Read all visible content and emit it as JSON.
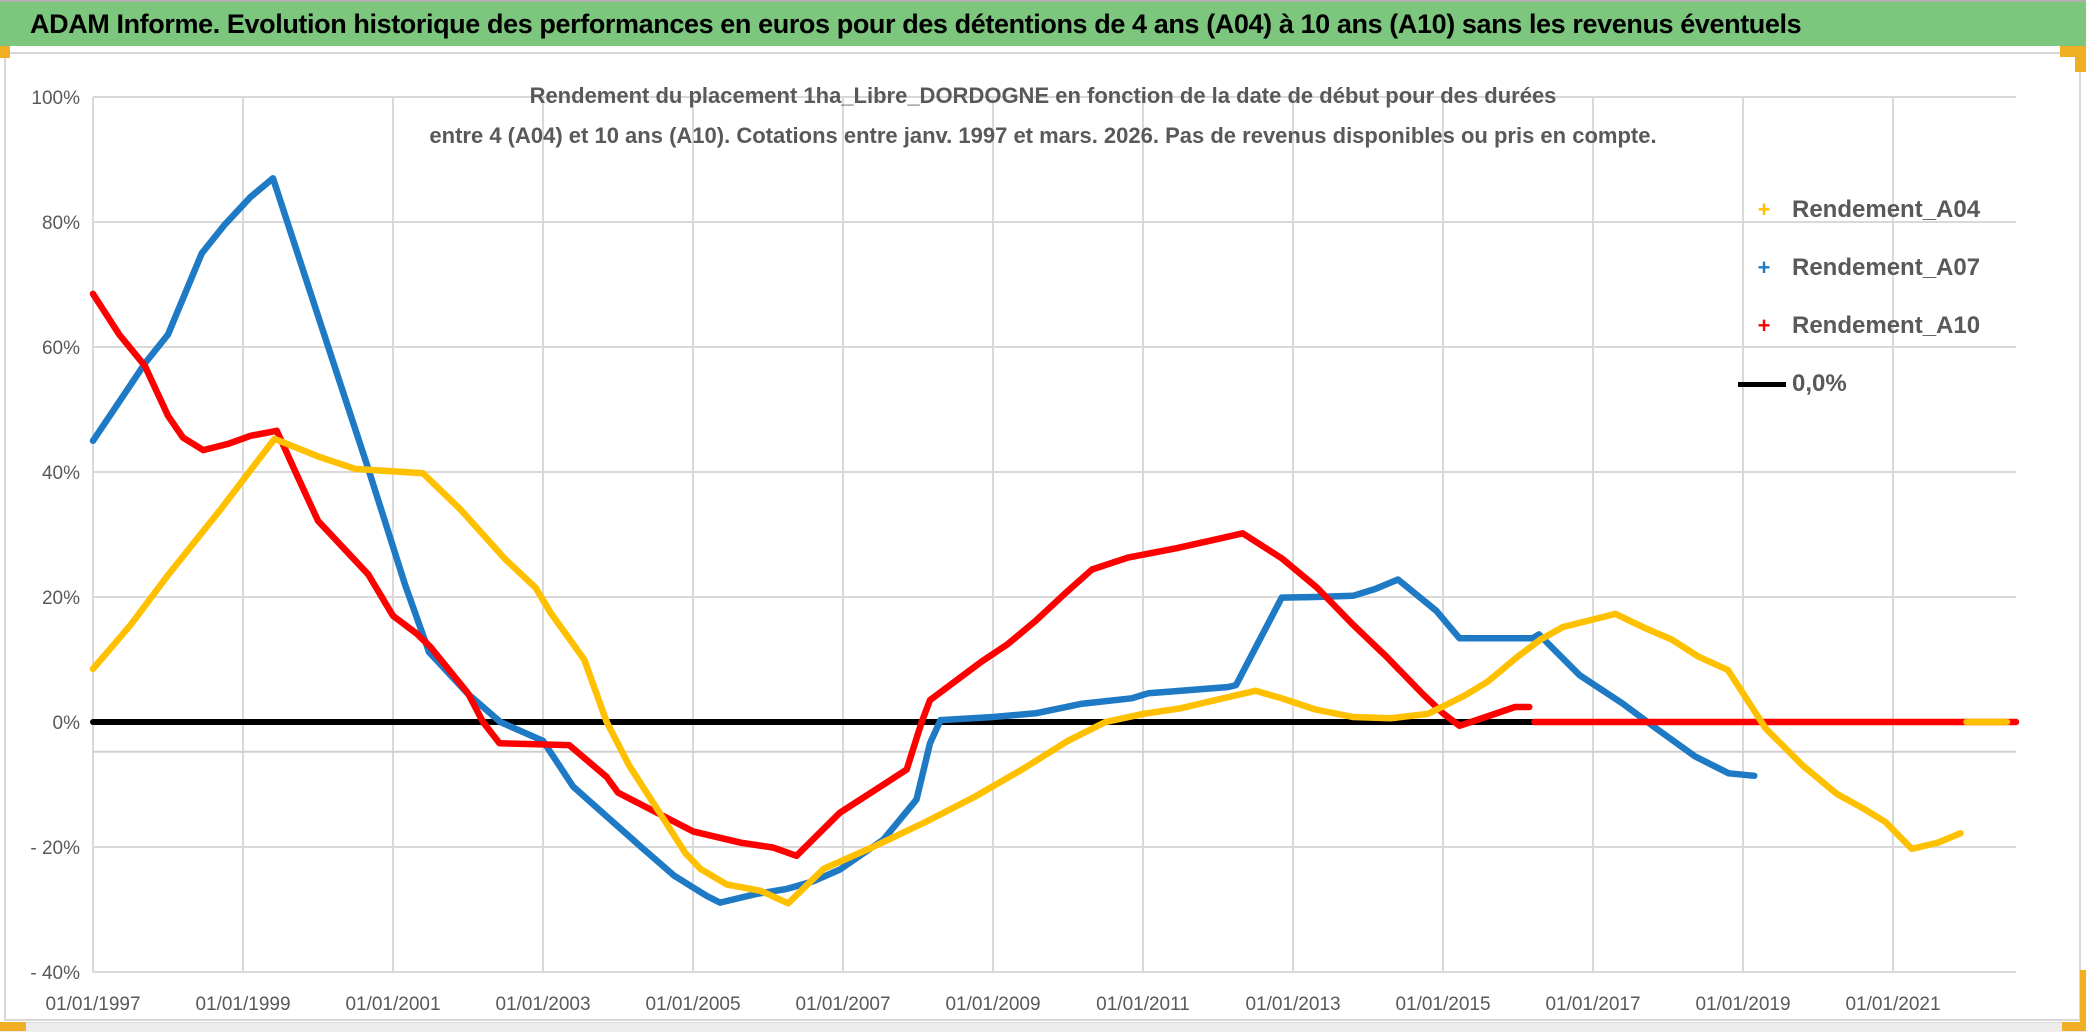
{
  "header": {
    "title": "ADAM Informe. Evolution historique des performances en euros pour des détentions de 4 ans (A04) à 10 ans (A10) sans les revenus éventuels"
  },
  "chart": {
    "title_line1": "Rendement du placement 1ha_Libre_DORDOGNE en fonction de la date de début pour des durées",
    "title_line2": "entre 4 (A04) et 10 ans (A10). Cotations entre janv. 1997 et mars. 2026. Pas de revenus disponibles ou pris en compte.",
    "legend": [
      {
        "label": "Rendement_A04",
        "marker": "+",
        "color": "#FFC000"
      },
      {
        "label": "Rendement_A07",
        "marker": "+",
        "color": "#1E7AC4"
      },
      {
        "label": "Rendement_A10",
        "marker": "+",
        "color": "#FF0000"
      },
      {
        "label": "0,0%",
        "marker": "line",
        "color": "#000000"
      }
    ]
  },
  "chart_data": {
    "type": "line",
    "title": "Rendement du placement 1ha_Libre_DORDOGNE en fonction de la date de début pour des durées entre 4 (A04) et 10 ans (A10). Cotations entre janv. 1997 et mars. 2026. Pas de revenus disponibles ou pris en compte.",
    "legend_position": "right",
    "grid": true,
    "x_axis": {
      "tick_years": [
        1997,
        1999,
        2001,
        2003,
        2005,
        2007,
        2009,
        2011,
        2013,
        2015,
        2017,
        2019,
        2021
      ],
      "tick_labels": [
        "01/01/1997",
        "01/01/1999",
        "01/01/2001",
        "01/01/2003",
        "01/01/2005",
        "01/01/2007",
        "01/01/2009",
        "01/01/2011",
        "01/01/2013",
        "01/01/2015",
        "01/01/2017",
        "01/01/2019",
        "01/01/2021"
      ],
      "range": [
        1997,
        2022.64
      ]
    },
    "y_axis": {
      "unit": "%",
      "tick_values": [
        100,
        80,
        60,
        40,
        20,
        0,
        -20,
        -40
      ],
      "tick_labels": [
        "100%",
        "80%",
        "60%",
        "40%",
        "20%",
        "0%",
        "- 20%",
        "- 40%"
      ],
      "range": [
        -40,
        100
      ],
      "extra_gridline_value": -4.75
    },
    "series": [
      {
        "name": "Rendement_A04",
        "color": "#FFC000",
        "marker": "+",
        "segments": [
          [
            [
              1997,
              8.5
            ],
            [
              1997.5,
              15.5
            ],
            [
              1998,
              23.5
            ],
            [
              1998.7,
              34
            ],
            [
              1999.42,
              45.3
            ],
            [
              2000,
              42.5
            ],
            [
              2000.5,
              40.5
            ],
            [
              2001.4,
              39.8
            ],
            [
              2001.9,
              34
            ],
            [
              2002.5,
              26
            ],
            [
              2002.9,
              21.5
            ],
            [
              2003.1,
              17.5
            ],
            [
              2003.55,
              10
            ],
            [
              2003.85,
              0
            ],
            [
              2004.15,
              -7
            ],
            [
              2004.5,
              -13.5
            ],
            [
              2004.9,
              -21
            ],
            [
              2005.1,
              -23.5
            ],
            [
              2005.45,
              -26
            ],
            [
              2005.9,
              -27
            ],
            [
              2006.27,
              -29
            ],
            [
              2006.74,
              -23.5
            ],
            [
              2007.4,
              -20
            ],
            [
              2008.1,
              -16
            ],
            [
              2008.75,
              -12
            ],
            [
              2009.4,
              -7.5
            ],
            [
              2010,
              -3
            ],
            [
              2010.5,
              0
            ],
            [
              2011,
              1.3
            ],
            [
              2011.5,
              2.2
            ],
            [
              2012,
              3.6
            ],
            [
              2012.5,
              5
            ],
            [
              2012.85,
              3.8
            ],
            [
              2013.3,
              2
            ],
            [
              2013.8,
              0.8
            ],
            [
              2014.3,
              0.6
            ],
            [
              2014.8,
              1.3
            ],
            [
              2015.3,
              4.3
            ],
            [
              2015.6,
              6.5
            ],
            [
              2016,
              10.5
            ],
            [
              2016.3,
              13.2
            ],
            [
              2016.6,
              15.2
            ],
            [
              2017.3,
              17.3
            ],
            [
              2017.7,
              15
            ],
            [
              2018.05,
              13.2
            ],
            [
              2018.4,
              10.5
            ],
            [
              2018.8,
              8.3
            ],
            [
              2019.3,
              -1
            ],
            [
              2019.8,
              -7
            ],
            [
              2020.25,
              -11.5
            ],
            [
              2020.6,
              -13.8
            ],
            [
              2020.9,
              -16
            ],
            [
              2021.25,
              -20.3
            ],
            [
              2021.6,
              -19.3
            ],
            [
              2021.9,
              -17.8
            ]
          ],
          [
            [
              2021.98,
              0
            ],
            [
              2022.52,
              0
            ]
          ]
        ]
      },
      {
        "name": "Rendement_A07",
        "color": "#1E7AC4",
        "marker": "+",
        "segments": [
          [
            [
              1997,
              45
            ],
            [
              1997.7,
              57.5
            ],
            [
              1998,
              62
            ],
            [
              1998.45,
              75
            ],
            [
              1998.75,
              79.5
            ],
            [
              1999.1,
              84
            ],
            [
              1999.4,
              87
            ],
            [
              2000,
              65
            ],
            [
              2000.67,
              40.5
            ],
            [
              2001.16,
              22
            ],
            [
              2001.48,
              11.2
            ],
            [
              2002,
              4.5
            ],
            [
              2002.43,
              0
            ],
            [
              2003,
              -3
            ],
            [
              2003.4,
              -10.3
            ],
            [
              2003.85,
              -15.1
            ],
            [
              2004.3,
              -19.9
            ],
            [
              2004.75,
              -24.6
            ],
            [
              2005.18,
              -27.8
            ],
            [
              2005.36,
              -28.9
            ],
            [
              2005.85,
              -27.5
            ],
            [
              2006.25,
              -26.7
            ],
            [
              2006.6,
              -25.5
            ],
            [
              2006.96,
              -23.6
            ],
            [
              2007.54,
              -18.8
            ],
            [
              2007.98,
              -12.4
            ],
            [
              2008.16,
              -3.4
            ],
            [
              2008.3,
              0.3
            ],
            [
              2009,
              0.8
            ],
            [
              2009.57,
              1.4
            ],
            [
              2010.17,
              2.9
            ],
            [
              2010.85,
              3.8
            ],
            [
              2011.07,
              4.6
            ],
            [
              2011.4,
              4.9
            ],
            [
              2012.14,
              5.6
            ],
            [
              2012.24,
              5.9
            ],
            [
              2012.85,
              19.9
            ],
            [
              2013.3,
              20
            ],
            [
              2013.8,
              20.2
            ],
            [
              2014.1,
              21.3
            ],
            [
              2014.4,
              22.8
            ],
            [
              2014.91,
              17.8
            ],
            [
              2015.22,
              13.4
            ],
            [
              2016.19,
              13.4
            ],
            [
              2016.28,
              14
            ],
            [
              2016.82,
              7.5
            ],
            [
              2017.39,
              3
            ],
            [
              2017.84,
              -1
            ],
            [
              2018.36,
              -5.5
            ],
            [
              2018.81,
              -8.2
            ],
            [
              2019.15,
              -8.6
            ]
          ]
        ]
      },
      {
        "name": "Rendement_A10",
        "color": "#FF0000",
        "marker": "+",
        "segments": [
          [
            [
              1997,
              68.5
            ],
            [
              1997.35,
              62
            ],
            [
              1997.69,
              57
            ],
            [
              1998,
              49
            ],
            [
              1998.2,
              45.5
            ],
            [
              1998.47,
              43.5
            ],
            [
              1998.8,
              44.5
            ],
            [
              1999.1,
              45.8
            ],
            [
              1999.45,
              46.6
            ],
            [
              1999.7,
              40
            ],
            [
              2000,
              32.2
            ],
            [
              2000.67,
              23.6
            ],
            [
              2001,
              17
            ],
            [
              2001.32,
              14.1
            ],
            [
              2001.5,
              12
            ],
            [
              2002,
              4.6
            ],
            [
              2002.2,
              0
            ],
            [
              2002.42,
              -3.4
            ],
            [
              2003.35,
              -3.7
            ],
            [
              2003.85,
              -8.8
            ],
            [
              2004,
              -11.3
            ],
            [
              2005,
              -17.5
            ],
            [
              2005.63,
              -19.3
            ],
            [
              2006.07,
              -20.1
            ],
            [
              2006.38,
              -21.4
            ],
            [
              2006.96,
              -14.5
            ],
            [
              2007.4,
              -11.1
            ],
            [
              2007.85,
              -7.6
            ],
            [
              2008.05,
              0
            ],
            [
              2008.16,
              3.5
            ],
            [
              2008.84,
              9.6
            ],
            [
              2009.2,
              12.5
            ],
            [
              2009.57,
              16.2
            ],
            [
              2010,
              21
            ],
            [
              2010.32,
              24.4
            ],
            [
              2010.8,
              26.3
            ],
            [
              2011.44,
              27.8
            ],
            [
              2012,
              29.3
            ],
            [
              2012.33,
              30.2
            ],
            [
              2012.85,
              26.2
            ],
            [
              2013.32,
              21.5
            ],
            [
              2013.79,
              15.7
            ],
            [
              2014.25,
              10.4
            ],
            [
              2014.72,
              4.6
            ],
            [
              2015,
              1.4
            ],
            [
              2015.22,
              -0.6
            ],
            [
              2015.57,
              0.8
            ],
            [
              2015.96,
              2.4
            ],
            [
              2016.15,
              2.4
            ]
          ],
          [
            [
              2016.22,
              0
            ],
            [
              2022.64,
              0
            ]
          ]
        ]
      },
      {
        "name": "0,0%",
        "color": "#000000",
        "marker": "none",
        "segments": [
          [
            [
              1997,
              0
            ],
            [
              2022.64,
              0
            ]
          ]
        ]
      }
    ]
  }
}
